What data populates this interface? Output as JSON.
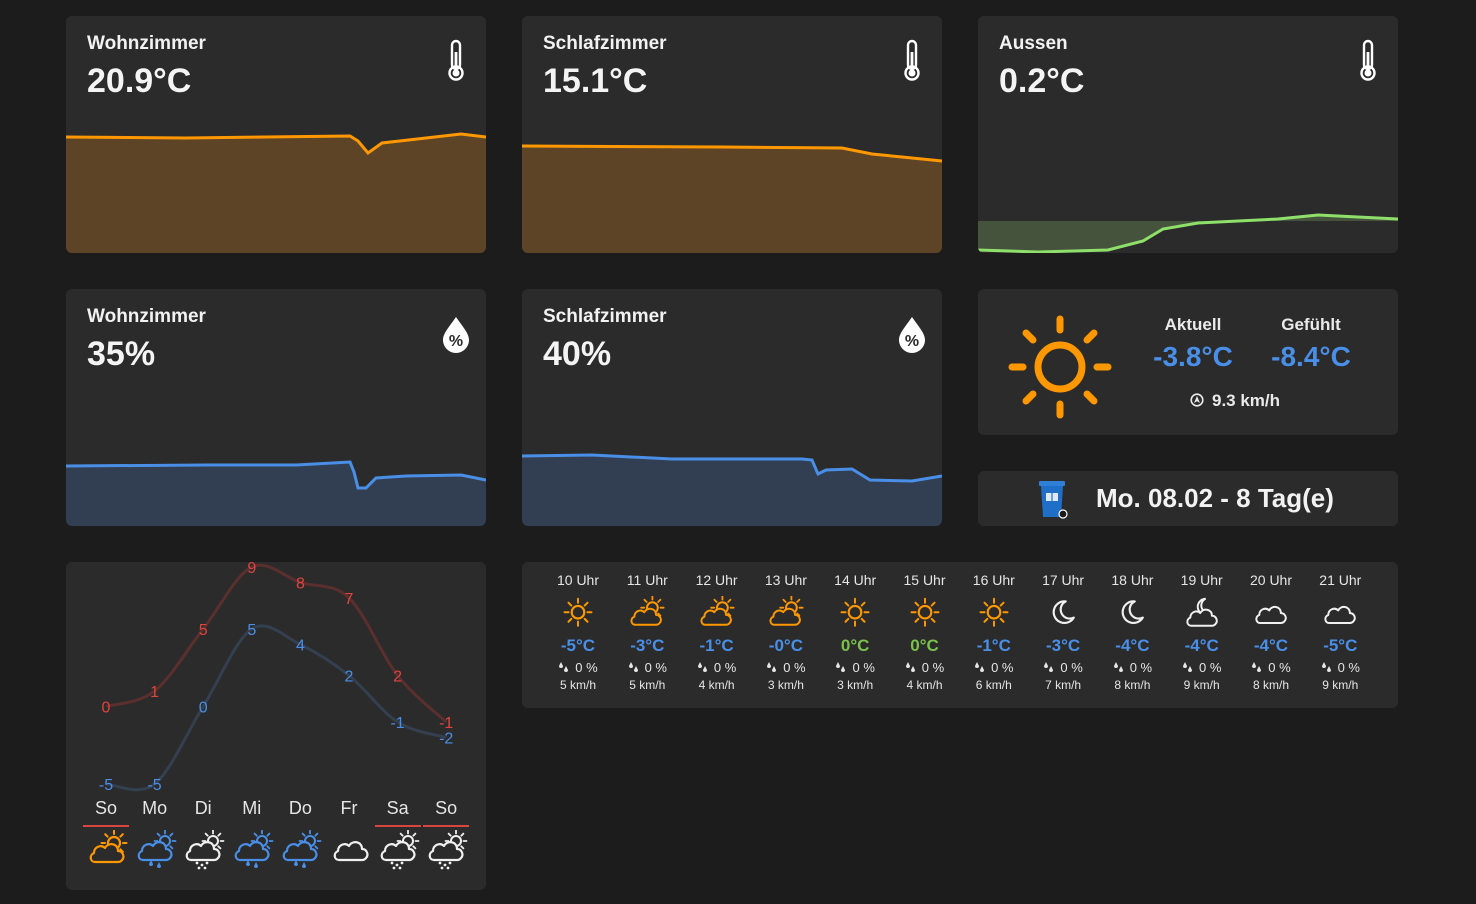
{
  "colors": {
    "orange": "#ff9800",
    "orange_fill": "#5d4426",
    "green": "#8ee06a",
    "green_fill": "#45523c",
    "blue": "#4a8fe7",
    "blue_fill": "#323e52",
    "red": "#e0443e",
    "card": "#2b2b2b"
  },
  "sensors": [
    {
      "name": "Wohnzimmer",
      "value": "20.9°C",
      "icon": "thermometer-icon"
    },
    {
      "name": "Schlafzimmer",
      "value": "15.1°C",
      "icon": "thermometer-icon"
    },
    {
      "name": "Aussen",
      "value": "0.2°C",
      "icon": "thermometer-icon"
    },
    {
      "name": "Wohnzimmer",
      "value": "35%",
      "icon": "humidity-icon"
    },
    {
      "name": "Schlafzimmer",
      "value": "40%",
      "icon": "humidity-icon"
    }
  ],
  "current": {
    "icon": "sun-icon",
    "actual_label": "Aktuell",
    "actual_value": "-3.8°C",
    "felt_label": "Gefühlt",
    "felt_value": "-8.4°C",
    "wind": "9.3 km/h"
  },
  "trash": {
    "icon": "trash-bin-icon",
    "text": "Mo. 08.02 - 8 Tag(e)"
  },
  "hourly": [
    {
      "time": "10 Uhr",
      "icon": "sun-icon",
      "temp": "-5°C",
      "temp_color": "#4a8fe7",
      "prec": "0 %",
      "wind": "5 km/h"
    },
    {
      "time": "11 Uhr",
      "icon": "partly-cloudy-icon",
      "temp": "-3°C",
      "temp_color": "#4a8fe7",
      "prec": "0 %",
      "wind": "5 km/h"
    },
    {
      "time": "12 Uhr",
      "icon": "partly-cloudy-icon",
      "temp": "-1°C",
      "temp_color": "#4a8fe7",
      "prec": "0 %",
      "wind": "4 km/h"
    },
    {
      "time": "13 Uhr",
      "icon": "partly-cloudy-icon",
      "temp": "-0°C",
      "temp_color": "#4a8fe7",
      "prec": "0 %",
      "wind": "3 km/h"
    },
    {
      "time": "14 Uhr",
      "icon": "sun-icon",
      "temp": "0°C",
      "temp_color": "#7ac14b",
      "prec": "0 %",
      "wind": "3 km/h"
    },
    {
      "time": "15 Uhr",
      "icon": "sun-icon",
      "temp": "0°C",
      "temp_color": "#7ac14b",
      "prec": "0 %",
      "wind": "4 km/h"
    },
    {
      "time": "16 Uhr",
      "icon": "sun-icon",
      "temp": "-1°C",
      "temp_color": "#4a8fe7",
      "prec": "0 %",
      "wind": "6 km/h"
    },
    {
      "time": "17 Uhr",
      "icon": "moon-icon",
      "temp": "-3°C",
      "temp_color": "#4a8fe7",
      "prec": "0 %",
      "wind": "7 km/h"
    },
    {
      "time": "18 Uhr",
      "icon": "moon-icon",
      "temp": "-4°C",
      "temp_color": "#4a8fe7",
      "prec": "0 %",
      "wind": "8 km/h"
    },
    {
      "time": "19 Uhr",
      "icon": "night-cloudy-icon",
      "temp": "-4°C",
      "temp_color": "#4a8fe7",
      "prec": "0 %",
      "wind": "9 km/h"
    },
    {
      "time": "20 Uhr",
      "icon": "cloud-icon",
      "temp": "-4°C",
      "temp_color": "#4a8fe7",
      "prec": "0 %",
      "wind": "8 km/h"
    },
    {
      "time": "21 Uhr",
      "icon": "cloud-icon",
      "temp": "-5°C",
      "temp_color": "#4a8fe7",
      "prec": "0 %",
      "wind": "9 km/h"
    }
  ],
  "daily": {
    "days": [
      {
        "label": "So",
        "weekend": true,
        "icon": "partly-cloudy-icon",
        "icon_color": "#ff9800"
      },
      {
        "label": "Mo",
        "weekend": false,
        "icon": "rain-cloud-icon",
        "icon_color": "#4a8fe7"
      },
      {
        "label": "Di",
        "weekend": false,
        "icon": "snow-cloud-icon",
        "icon_color": "#f0f0f0"
      },
      {
        "label": "Mi",
        "weekend": false,
        "icon": "rain-cloud-icon",
        "icon_color": "#4a8fe7"
      },
      {
        "label": "Do",
        "weekend": false,
        "icon": "rain-cloud-icon",
        "icon_color": "#4a8fe7"
      },
      {
        "label": "Fr",
        "weekend": false,
        "icon": "cloud-icon",
        "icon_color": "#f0f0f0"
      },
      {
        "label": "Sa",
        "weekend": true,
        "icon": "snow-cloud-icon",
        "icon_color": "#f0f0f0"
      },
      {
        "label": "So",
        "weekend": true,
        "icon": "snow-cloud-icon",
        "icon_color": "#f0f0f0"
      }
    ],
    "high": [
      0,
      1,
      5,
      9,
      8,
      7,
      2,
      -1
    ],
    "low": [
      -5,
      -5,
      0,
      5,
      4,
      2,
      -1,
      -2
    ]
  }
}
